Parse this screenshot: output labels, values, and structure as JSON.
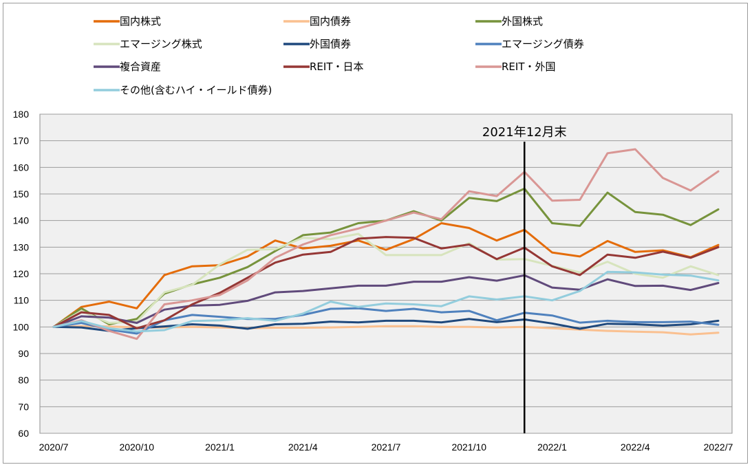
{
  "chart_data": {
    "type": "line",
    "title": "",
    "xlabel": "",
    "ylabel": "",
    "ylim": [
      60,
      180
    ],
    "yticks": [
      60,
      70,
      80,
      90,
      100,
      110,
      120,
      130,
      140,
      150,
      160,
      170,
      180
    ],
    "x_tick_labels": [
      "2020/7",
      "2020/10",
      "2021/1",
      "2021/4",
      "2021/7",
      "2021/10",
      "2022/1",
      "2022/4",
      "2022/7"
    ],
    "x": [
      "2020/7",
      "2020/8",
      "2020/9",
      "2020/10",
      "2020/11",
      "2020/12",
      "2021/1",
      "2021/2",
      "2021/3",
      "2021/4",
      "2021/5",
      "2021/6",
      "2021/7",
      "2021/8",
      "2021/9",
      "2021/10",
      "2021/11",
      "2021/12",
      "2022/1",
      "2022/2",
      "2022/3",
      "2022/4",
      "2022/5",
      "2022/6",
      "2022/7"
    ],
    "grid": true,
    "legend_position": "top",
    "background": "#f0f0f0",
    "annotation": {
      "label": "2021年12月末",
      "at": "2021/12"
    },
    "series": [
      {
        "name": "国内株式",
        "color": "#e46c0a",
        "values": [
          100,
          107.5,
          109.5,
          107,
          119.5,
          122.8,
          123.2,
          126.5,
          132.5,
          129.5,
          130.5,
          132.5,
          129,
          133,
          139,
          137.2,
          132.5,
          136.5,
          128,
          126.5,
          132.3,
          128.2,
          128.8,
          126.2,
          130.8
        ]
      },
      {
        "name": "国内債券",
        "color": "#fac090",
        "values": [
          100,
          100.3,
          100.2,
          99.8,
          99.8,
          100,
          99.8,
          99.5,
          99.7,
          99.7,
          99.8,
          100,
          100.3,
          100.3,
          100,
          100,
          99.8,
          100,
          99.5,
          99,
          98.5,
          98.2,
          98,
          97.2,
          97.8
        ]
      },
      {
        "name": "外国株式",
        "color": "#77933c",
        "values": [
          100,
          107,
          101,
          103,
          112.5,
          116,
          118.5,
          122.5,
          128.5,
          134.5,
          135.5,
          139,
          140,
          143.5,
          140,
          148.5,
          147.3,
          152,
          139,
          138,
          150.5,
          143.2,
          142.2,
          138.3,
          144.2
        ]
      },
      {
        "name": "エマージング株式",
        "color": "#d7e4bd",
        "values": [
          100,
          106,
          101.5,
          102,
          113,
          115.8,
          123.5,
          129,
          129.2,
          133.5,
          133,
          135,
          127,
          127,
          127,
          131.5,
          125.3,
          125.5,
          123,
          120.5,
          124.5,
          120,
          118.5,
          122.8,
          119.5
        ]
      },
      {
        "name": "外国債券",
        "color": "#1f497d",
        "values": [
          100,
          99.8,
          98.5,
          99.5,
          100.2,
          101,
          100.5,
          99.3,
          101,
          101.2,
          102,
          101.7,
          102.3,
          102.3,
          101.7,
          103,
          101.8,
          102.8,
          101.3,
          99.3,
          101.2,
          101,
          100.5,
          101,
          102.3
        ]
      },
      {
        "name": "エマージング債券",
        "color": "#4f81bd",
        "values": [
          100,
          101.5,
          99,
          97.5,
          102.5,
          104.5,
          103.8,
          103,
          103,
          104.5,
          106.8,
          107,
          106,
          106.8,
          105.5,
          106,
          102.5,
          105.3,
          104.3,
          101.6,
          102.3,
          101.8,
          101.8,
          102,
          100.8
        ]
      },
      {
        "name": "複合資産",
        "color": "#604a7b",
        "values": [
          100,
          104,
          103.5,
          101.5,
          106.5,
          108,
          108.3,
          109.8,
          113,
          113.5,
          114.5,
          115.5,
          115.5,
          117,
          117,
          118.7,
          117.4,
          119.4,
          114.8,
          114,
          117.9,
          115.4,
          115.5,
          113.9,
          116.5
        ]
      },
      {
        "name": "REIT・日本",
        "color": "#953735",
        "values": [
          100,
          105.5,
          104.5,
          99.5,
          102.5,
          108.5,
          112.8,
          118.5,
          124.2,
          127.2,
          128.2,
          133.2,
          133.8,
          133.5,
          129.5,
          131,
          125.5,
          129.8,
          122.8,
          119.5,
          127.2,
          126,
          128.3,
          126,
          130
        ]
      },
      {
        "name": "REIT・外国",
        "color": "#d99694",
        "values": [
          100,
          102.5,
          98.5,
          95.5,
          108.5,
          110,
          112,
          117.5,
          126,
          131,
          134.5,
          137,
          140,
          143,
          140.5,
          151,
          149.2,
          158.3,
          147.5,
          147.8,
          165.3,
          166.8,
          156,
          151.3,
          158.5
        ]
      },
      {
        "name": "その他(含むハイ・イールド債券)",
        "color": "#93cddd",
        "values": [
          100,
          102.2,
          99.5,
          98.3,
          98.8,
          102.2,
          102.5,
          103.3,
          102.3,
          105,
          109.5,
          107.5,
          108.8,
          108.5,
          107.8,
          111.5,
          110.3,
          111.5,
          110,
          113.5,
          120.7,
          120.5,
          119.7,
          119.3,
          117.5
        ]
      }
    ]
  }
}
